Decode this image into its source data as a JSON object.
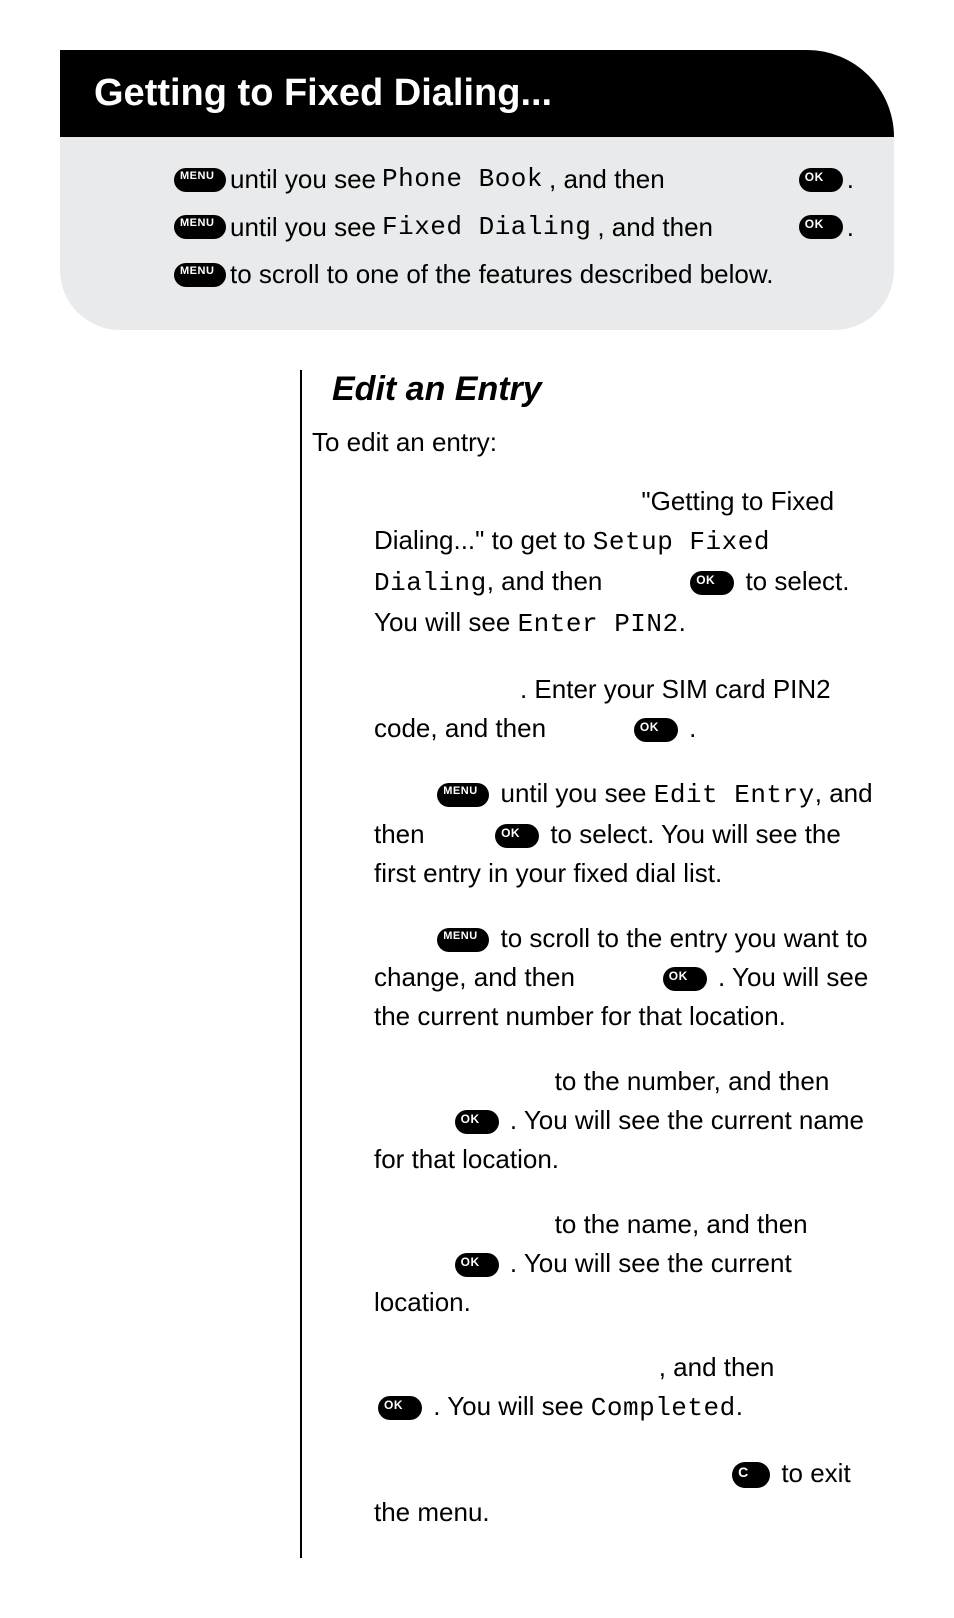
{
  "header": {
    "title": "Getting to Fixed Dialing..."
  },
  "icons": {
    "menu": "MENU",
    "ok": "OK",
    "c": "C"
  },
  "grey": {
    "line1_a": " until you see ",
    "line1_lcd": "Phone Book",
    "line1_b": ", and then ",
    "line1_c": ".",
    "line2_a": " until you see ",
    "line2_lcd": "Fixed Dialing",
    "line2_b": ", and then ",
    "line2_c": ".",
    "line3_a": " to scroll to one of the features described below."
  },
  "section": {
    "subhead": "Edit an Entry",
    "intro": "To edit an entry:"
  },
  "steps": {
    "s1_a": "\"Getting to Fixed Dialing...\" to get to ",
    "s1_lcd": "Setup Fixed Dialing",
    "s1_b": ", and then ",
    "s1_c": " to select. You will see ",
    "s1_lcd2": "Enter PIN2",
    "s1_d": ".",
    "s2_a": ". Enter your SIM card PIN2 code, and then ",
    "s2_b": ".",
    "s3_a": " until you see ",
    "s3_lcd": "Edit Entry",
    "s3_b": ", and then ",
    "s3_c": " to select. You will see the first entry in your fixed dial list.",
    "s4_a": " to scroll to the entry you want to change, and then ",
    "s4_b": ". You will see the current number for that location.",
    "s5_a": " to the number, and then ",
    "s5_b": ". You will see the current name for that location.",
    "s6_a": " to the name, and then ",
    "s6_b": ". You will see the current location.",
    "s7_a": ", and then ",
    "s7_b": ". You will see ",
    "s7_lcd": "Completed",
    "s7_c": ".",
    "s8_a": " to exit the menu."
  }
}
